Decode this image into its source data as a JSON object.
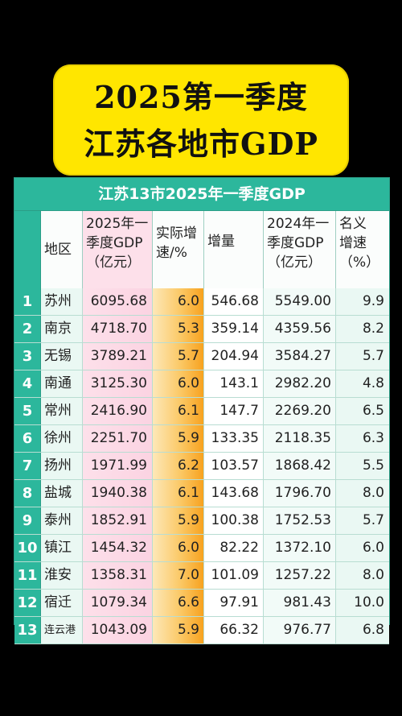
{
  "banner": {
    "line1": "2025第一季度",
    "line2": "江苏各地市GDP"
  },
  "table": {
    "title": "江苏13市2025年一季度GDP",
    "headers": {
      "region": [
        "地区"
      ],
      "gdp2025": [
        "2025年一",
        "季度GDP",
        "（亿元）"
      ],
      "growth": [
        "实际增",
        "速/%"
      ],
      "increase": [
        "增量"
      ],
      "gdp2024": [
        "2024年一",
        "季度GDP",
        "（亿元）"
      ],
      "nominal": [
        "名义",
        "增速",
        "（%）"
      ]
    },
    "rows": [
      {
        "no": "1",
        "region": "苏州",
        "gdp2025": "6095.68",
        "growth": "6.0",
        "increase": "546.68",
        "gdp2024": "5549.00",
        "nominal": "9.9"
      },
      {
        "no": "2",
        "region": "南京",
        "gdp2025": "4718.70",
        "growth": "5.3",
        "increase": "359.14",
        "gdp2024": "4359.56",
        "nominal": "8.2"
      },
      {
        "no": "3",
        "region": "无锡",
        "gdp2025": "3789.21",
        "growth": "5.7",
        "increase": "204.94",
        "gdp2024": "3584.27",
        "nominal": "5.7"
      },
      {
        "no": "4",
        "region": "南通",
        "gdp2025": "3125.30",
        "growth": "6.0",
        "increase": "143.1",
        "gdp2024": "2982.20",
        "nominal": "4.8"
      },
      {
        "no": "5",
        "region": "常州",
        "gdp2025": "2416.90",
        "growth": "6.1",
        "increase": "147.7",
        "gdp2024": "2269.20",
        "nominal": "6.5"
      },
      {
        "no": "6",
        "region": "徐州",
        "gdp2025": "2251.70",
        "growth": "5.9",
        "increase": "133.35",
        "gdp2024": "2118.35",
        "nominal": "6.3"
      },
      {
        "no": "7",
        "region": "扬州",
        "gdp2025": "1971.99",
        "growth": "6.2",
        "increase": "103.57",
        "gdp2024": "1868.42",
        "nominal": "5.5"
      },
      {
        "no": "8",
        "region": "盐城",
        "gdp2025": "1940.38",
        "growth": "6.1",
        "increase": "143.68",
        "gdp2024": "1796.70",
        "nominal": "8.0"
      },
      {
        "no": "9",
        "region": "泰州",
        "gdp2025": "1852.91",
        "growth": "5.9",
        "increase": "100.38",
        "gdp2024": "1752.53",
        "nominal": "5.7"
      },
      {
        "no": "10",
        "region": "镇江",
        "gdp2025": "1454.32",
        "growth": "6.0",
        "increase": "82.22",
        "gdp2024": "1372.10",
        "nominal": "6.0"
      },
      {
        "no": "11",
        "region": "淮安",
        "gdp2025": "1358.31",
        "growth": "7.0",
        "increase": "101.09",
        "gdp2024": "1257.22",
        "nominal": "8.0"
      },
      {
        "no": "12",
        "region": "宿迁",
        "gdp2025": "1079.34",
        "growth": "6.6",
        "increase": "97.91",
        "gdp2024": "981.43",
        "nominal": "10.0"
      },
      {
        "no": "13",
        "region": "连云港",
        "gdp2025": "1043.09",
        "growth": "5.9",
        "increase": "66.32",
        "gdp2024": "976.77",
        "nominal": "6.8"
      }
    ]
  },
  "colors": {
    "banner_bg": "#ffe600",
    "title_bar": "#2cb79c",
    "growth_col": "#f7a21f",
    "gdp_col": "#fbd3e2"
  }
}
